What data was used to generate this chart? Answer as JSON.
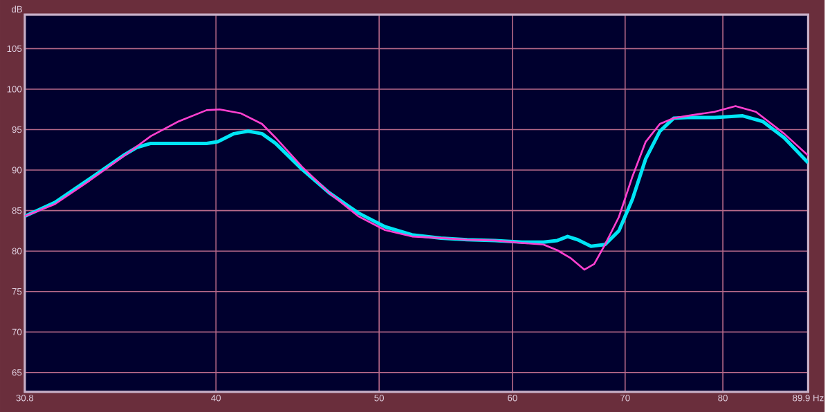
{
  "chart_data": {
    "type": "line",
    "ylabel": "dB",
    "log": "x",
    "grid": true,
    "line_style": "solid",
    "xlim": [
      30.8,
      89.9
    ],
    "ylim": [
      62.6,
      109.2
    ],
    "xticks": [
      30.8,
      40,
      50,
      60,
      70,
      80,
      {
        "value": 89.9,
        "label": "89.9 Hz"
      }
    ],
    "yticks": [
      65,
      70,
      75,
      80,
      85,
      90,
      95,
      100,
      105
    ],
    "series": [
      {
        "color": "#00e5f5",
        "x": [
          30.8,
          32.1,
          33.65,
          35.3,
          35.9,
          36.6,
          38.0,
          39.5,
          40.1,
          41.0,
          41.8,
          42.6,
          43.4,
          45.0,
          46.7,
          48.6,
          50.4,
          52.3,
          54.4,
          56.4,
          58.6,
          60.8,
          62.6,
          63.8,
          64.7,
          65.6,
          66.8,
          68.1,
          69.4,
          70.7,
          72.0,
          73.4,
          74.8,
          76.2,
          79.1,
          82.2,
          84.5,
          87.0,
          89.9
        ],
        "values": [
          84.3,
          86.0,
          88.9,
          91.9,
          92.8,
          93.3,
          93.3,
          93.3,
          93.5,
          94.5,
          94.8,
          94.5,
          93.3,
          90.1,
          87.2,
          84.7,
          83.0,
          82.0,
          81.6,
          81.4,
          81.3,
          81.1,
          81.1,
          81.3,
          81.8,
          81.4,
          80.6,
          80.8,
          82.5,
          86.4,
          91.4,
          94.8,
          96.4,
          96.5,
          96.5,
          96.7,
          96.0,
          94.0,
          90.9
        ]
      },
      {
        "color": "#ff40d0",
        "x": [
          30.8,
          32.1,
          33.65,
          35.3,
          36.6,
          38.0,
          39.5,
          40.2,
          41.4,
          42.6,
          43.4,
          45.0,
          46.7,
          48.6,
          50.4,
          52.3,
          54.4,
          56.4,
          58.6,
          60.8,
          62.6,
          63.8,
          65.0,
          66.2,
          67.1,
          68.1,
          69.4,
          70.7,
          72.0,
          73.4,
          74.8,
          76.2,
          79.1,
          81.4,
          83.7,
          87.0,
          89.9
        ],
        "values": [
          84.3,
          85.8,
          88.7,
          91.8,
          94.2,
          96.0,
          97.4,
          97.5,
          97.0,
          95.7,
          94.0,
          90.4,
          87.2,
          84.3,
          82.6,
          81.8,
          81.6,
          81.4,
          81.3,
          81.0,
          80.8,
          80.1,
          79.1,
          77.7,
          78.4,
          80.8,
          84.2,
          89.2,
          93.5,
          95.7,
          96.4,
          96.7,
          97.2,
          97.9,
          97.2,
          94.5,
          91.8
        ]
      }
    ]
  }
}
